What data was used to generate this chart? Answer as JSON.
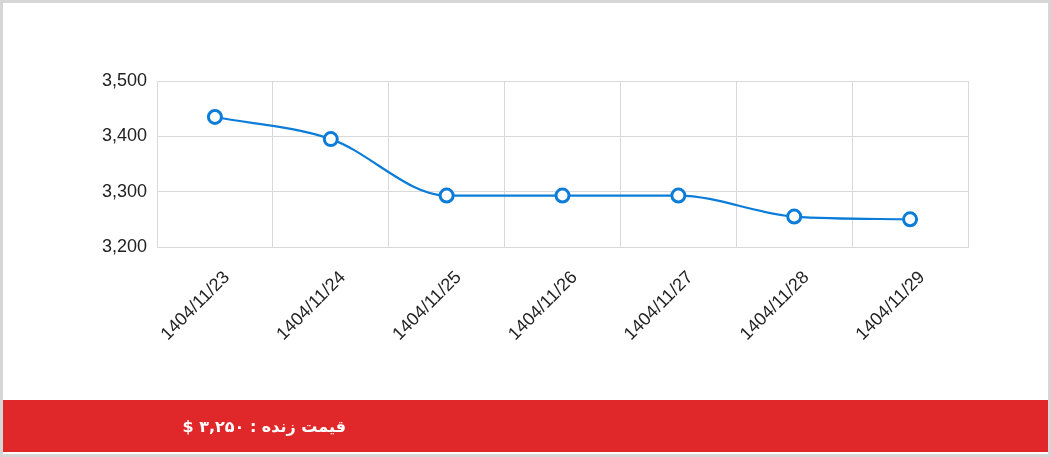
{
  "chart_data": {
    "type": "line",
    "categories": [
      "1404/11/23",
      "1404/11/24",
      "1404/11/25",
      "1404/11/26",
      "1404/11/27",
      "1404/11/28",
      "1404/11/29"
    ],
    "series": [
      {
        "color": "#0b7dd8",
        "values": [
          3435,
          3395,
          3293,
          3293,
          3293,
          3255,
          3250
        ]
      }
    ],
    "ylim": [
      3200,
      3500
    ],
    "yticks": [
      {
        "value": 3200,
        "label": "3,200"
      },
      {
        "value": 3300,
        "label": "3,300"
      },
      {
        "value": 3400,
        "label": "3,400"
      },
      {
        "value": 3500,
        "label": "3,500"
      }
    ],
    "grid": true,
    "marker": "circle",
    "line_style": "solid",
    "annotations": [
      "قیمت زنده : ۳,۲۵۰ $"
    ]
  }
}
